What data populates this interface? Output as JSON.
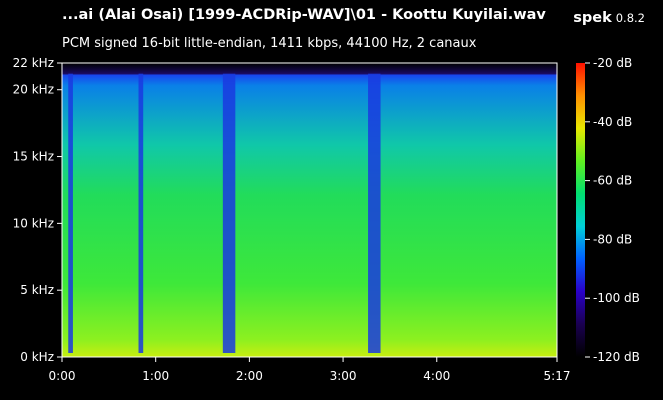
{
  "window": {
    "title": "...ai  (Alai Osai) [1999-ACDRip-WAV]\\01 - Koottu Kuyilai.wav",
    "app_name": "spek",
    "app_version": "0.8.2",
    "subtitle": "PCM signed 16-bit little-endian, 1411 kbps, 44100 Hz, 2 canaux"
  },
  "chart_data": {
    "type": "heatmap",
    "title": "...ai  (Alai Osai) [1999-ACDRip-WAV]\\01 - Koottu Kuyilai.wav",
    "subtitle": "PCM signed 16-bit little-endian, 1411 kbps, 44100 Hz, 2 canaux",
    "x_axis": {
      "unit": "time",
      "range_seconds": [
        0,
        317
      ],
      "ticks": [
        {
          "value": 0,
          "label": "0:00"
        },
        {
          "value": 60,
          "label": "1:00"
        },
        {
          "value": 120,
          "label": "2:00"
        },
        {
          "value": 180,
          "label": "3:00"
        },
        {
          "value": 240,
          "label": "4:00"
        },
        {
          "value": 317,
          "label": "5:17"
        }
      ]
    },
    "y_axis": {
      "unit": "kHz",
      "range": [
        0,
        22
      ],
      "ticks": [
        {
          "value": 0,
          "label": "0 kHz"
        },
        {
          "value": 5,
          "label": "5 kHz"
        },
        {
          "value": 10,
          "label": "10 kHz"
        },
        {
          "value": 15,
          "label": "15 kHz"
        },
        {
          "value": 20,
          "label": "20 kHz"
        },
        {
          "value": 22,
          "label": "22 kHz"
        }
      ]
    },
    "color_scale": {
      "unit": "dB",
      "range": [
        -120,
        -20
      ],
      "ticks": [
        {
          "value": -20,
          "label": "-20 dB"
        },
        {
          "value": -40,
          "label": "-40 dB"
        },
        {
          "value": -60,
          "label": "-60 dB"
        },
        {
          "value": -80,
          "label": "-80 dB"
        },
        {
          "value": -100,
          "label": "-100 dB"
        },
        {
          "value": -120,
          "label": "-120 dB"
        }
      ],
      "colors": [
        "#000000",
        "#1a0050",
        "#2a00c8",
        "#0060ff",
        "#00d0d8",
        "#00e070",
        "#60f020",
        "#e8e800",
        "#ff9000",
        "#ff1000"
      ]
    },
    "content_cutoff_khz": 21.2,
    "quiet_segments_seconds": [
      [
        4,
        7
      ],
      [
        49,
        52
      ],
      [
        103,
        111
      ],
      [
        196,
        204
      ]
    ],
    "grid": false,
    "legend": "right"
  }
}
